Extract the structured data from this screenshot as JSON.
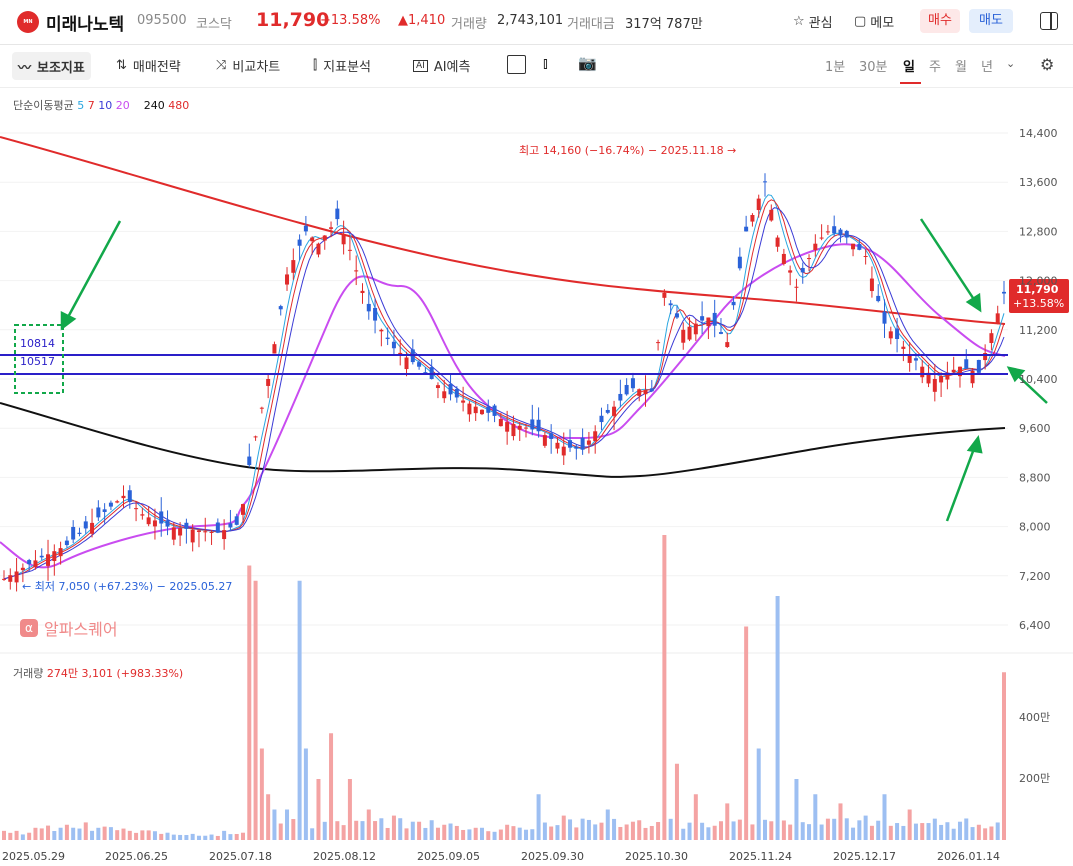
{
  "header": {
    "logo_text": "미래나노텍",
    "name": "미래나노텍",
    "code": "095500",
    "market": "코스닥",
    "price": "11,790",
    "change_pct": "+13.58%",
    "change_abs": "▲1,410",
    "volume_label": "거래량",
    "volume_value": "2,743,101",
    "amount_label": "거래대금",
    "amount_value": "317억 787만",
    "watch_label": "관심",
    "memo_label": "메모",
    "buy_label": "매수",
    "sell_label": "매도"
  },
  "toolbar": {
    "indicators": "보조지표",
    "strategy": "매매전략",
    "compare": "비교차트",
    "drawing": "지표분석",
    "ai": "AI예측",
    "periods": [
      "1분",
      "30분",
      "일",
      "주",
      "월",
      "년"
    ],
    "selected_period": "일"
  },
  "legend": {
    "title": "단순이동평균",
    "ma5": "5",
    "ma7": "7",
    "ma10": "10",
    "ma20": "20",
    "ma240": "240",
    "ma480": "480",
    "colors": {
      "ma5": "#2aa6e0",
      "ma7": "#e02b2b",
      "ma10": "#3b3bd6",
      "ma20": "#c94cf0",
      "ma240": "#111111",
      "ma480": "#e02b2b"
    }
  },
  "annotations": {
    "high": "최고 14,160 (−16.74%) − 2025.11.18 →",
    "low": "← 최저 7,050 (+67.23%) − 2025.05.27",
    "line_10814": "10814",
    "line_10517": "10517",
    "price_tag": "11,790",
    "price_tag_pct": "+13.58%"
  },
  "watermark": {
    "badge": "α",
    "text": "알파스퀘어"
  },
  "volume_legend": {
    "label": "거래량",
    "value": "274만 3,101 (+983.33%)"
  },
  "colors": {
    "up": "#e02b2b",
    "down": "#2a62d8",
    "up_vol": "#f4a3a3",
    "down_vol": "#9dbff2",
    "hline": "#2a1fc8",
    "arrow": "#12a84a"
  },
  "chart_data": {
    "type": "candlestick",
    "y_axis": [
      "14,400",
      "13,600",
      "12,800",
      "12,000",
      "11,200",
      "10,400",
      "9,600",
      "8,800",
      "8,000",
      "7,200",
      "6,400"
    ],
    "ylim": [
      6400,
      14400
    ],
    "x_axis": [
      "2025.05.29",
      "2025.06.25",
      "2025.07.18",
      "2025.08.12",
      "2025.09.05",
      "2025.09.30",
      "2025.10.30",
      "2025.11.24",
      "2025.12.17",
      "2026.01.14"
    ],
    "horizontal_lines": [
      10814,
      10517
    ],
    "last_price": 11790,
    "high": {
      "value": 14160,
      "date": "2025.11.18"
    },
    "low": {
      "value": 7050,
      "date": "2025.05.27"
    },
    "volume_axis": [
      "400만",
      "200만"
    ],
    "close_path": [
      [
        0,
        7150
      ],
      [
        10,
        7450
      ],
      [
        20,
        7700
      ],
      [
        30,
        8150
      ],
      [
        38,
        8500
      ],
      [
        44,
        8200
      ],
      [
        52,
        8000
      ],
      [
        60,
        7950
      ],
      [
        68,
        7900
      ],
      [
        75,
        8050
      ],
      [
        78,
        9000
      ],
      [
        84,
        10400
      ],
      [
        90,
        12100
      ],
      [
        96,
        12800
      ],
      [
        100,
        12600
      ],
      [
        106,
        13000
      ],
      [
        110,
        12500
      ],
      [
        116,
        11500
      ],
      [
        124,
        10900
      ],
      [
        132,
        10600
      ],
      [
        140,
        10200
      ],
      [
        150,
        9950
      ],
      [
        160,
        9700
      ],
      [
        170,
        9550
      ],
      [
        178,
        9300
      ],
      [
        184,
        9250
      ],
      [
        192,
        9850
      ],
      [
        200,
        10250
      ],
      [
        206,
        10200
      ],
      [
        210,
        11800
      ],
      [
        216,
        11200
      ],
      [
        224,
        11400
      ],
      [
        230,
        11000
      ],
      [
        236,
        12800
      ],
      [
        242,
        13600
      ],
      [
        246,
        12700
      ],
      [
        252,
        11900
      ],
      [
        258,
        12600
      ],
      [
        262,
        12800
      ],
      [
        268,
        12700
      ],
      [
        274,
        12400
      ],
      [
        280,
        11300
      ],
      [
        288,
        10800
      ],
      [
        296,
        10400
      ],
      [
        304,
        10600
      ],
      [
        310,
        10500
      ],
      [
        318,
        11790
      ]
    ],
    "volume": [
      [
        0,
        0.3
      ],
      [
        10,
        0.4
      ],
      [
        20,
        0.5
      ],
      [
        30,
        0.4
      ],
      [
        40,
        0.3
      ],
      [
        50,
        0.2
      ],
      [
        60,
        0.2
      ],
      [
        70,
        0.3
      ],
      [
        78,
        9.0
      ],
      [
        80,
        8.5
      ],
      [
        82,
        3.0
      ],
      [
        84,
        1.5
      ],
      [
        86,
        1.0
      ],
      [
        90,
        1.0
      ],
      [
        94,
        8.5
      ],
      [
        96,
        3.0
      ],
      [
        100,
        2.0
      ],
      [
        104,
        3.5
      ],
      [
        110,
        2.0
      ],
      [
        116,
        1.0
      ],
      [
        124,
        0.8
      ],
      [
        130,
        0.6
      ],
      [
        140,
        0.5
      ],
      [
        150,
        0.4
      ],
      [
        160,
        0.5
      ],
      [
        170,
        1.5
      ],
      [
        178,
        0.8
      ],
      [
        184,
        0.7
      ],
      [
        192,
        1.0
      ],
      [
        200,
        0.6
      ],
      [
        210,
        10.0
      ],
      [
        214,
        2.5
      ],
      [
        220,
        1.5
      ],
      [
        230,
        1.2
      ],
      [
        236,
        7.0
      ],
      [
        240,
        3.0
      ],
      [
        246,
        8.0
      ],
      [
        252,
        2.0
      ],
      [
        258,
        1.5
      ],
      [
        266,
        1.2
      ],
      [
        274,
        0.8
      ],
      [
        280,
        1.5
      ],
      [
        288,
        1.0
      ],
      [
        296,
        0.7
      ],
      [
        304,
        0.6
      ],
      [
        310,
        0.5
      ],
      [
        318,
        5.5
      ]
    ]
  }
}
